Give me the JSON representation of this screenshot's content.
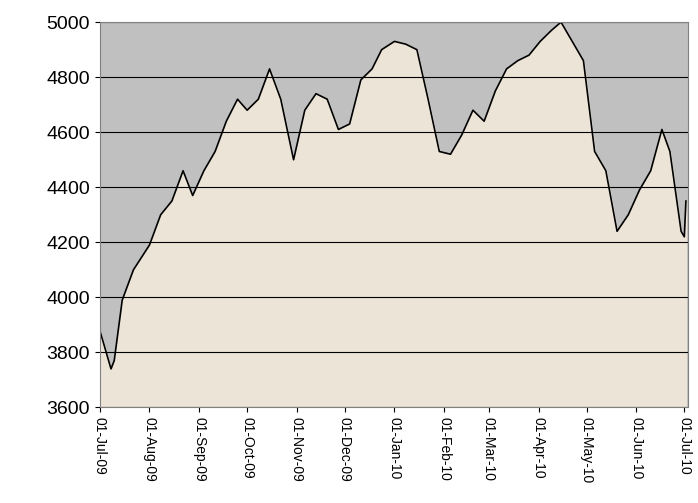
{
  "chart_data": {
    "type": "line",
    "color": "#000000",
    "grid": true,
    "x": [
      "2009-07-01",
      "2009-07-08",
      "2009-07-10",
      "2009-07-15",
      "2009-07-22",
      "2009-08-01",
      "2009-08-08",
      "2009-08-15",
      "2009-08-22",
      "2009-08-28",
      "2009-09-04",
      "2009-09-11",
      "2009-09-18",
      "2009-09-25",
      "2009-10-01",
      "2009-10-08",
      "2009-10-15",
      "2009-10-22",
      "2009-10-30",
      "2009-11-06",
      "2009-11-13",
      "2009-11-20",
      "2009-11-27",
      "2009-12-04",
      "2009-12-11",
      "2009-12-18",
      "2009-12-24",
      "2010-01-01",
      "2010-01-08",
      "2010-01-15",
      "2010-01-22",
      "2010-01-29",
      "2010-02-05",
      "2010-02-12",
      "2010-02-19",
      "2010-02-26",
      "2010-03-05",
      "2010-03-12",
      "2010-03-19",
      "2010-03-26",
      "2010-04-02",
      "2010-04-09",
      "2010-04-15",
      "2010-04-22",
      "2010-04-29",
      "2010-05-06",
      "2010-05-13",
      "2010-05-20",
      "2010-05-27",
      "2010-06-03",
      "2010-06-10",
      "2010-06-17",
      "2010-06-22",
      "2010-06-29",
      "2010-07-01",
      "2010-07-02"
    ],
    "values": [
      3880,
      3740,
      3770,
      3990,
      4100,
      4190,
      4300,
      4350,
      4460,
      4370,
      4460,
      4530,
      4640,
      4720,
      4680,
      4720,
      4830,
      4720,
      4500,
      4680,
      4740,
      4720,
      4610,
      4630,
      4790,
      4830,
      4900,
      4930,
      4920,
      4900,
      4720,
      4530,
      4520,
      4590,
      4680,
      4640,
      4750,
      4830,
      4860,
      4880,
      4930,
      4970,
      5000,
      4930,
      4860,
      4530,
      4460,
      4240,
      4300,
      4390,
      4460,
      4610,
      4530,
      4240,
      4220,
      4350
    ],
    "xlim": [
      "2009-07-01",
      "2010-07-03"
    ],
    "xticks": [
      {
        "value": "2009-07-01",
        "label": "01-Jul-09"
      },
      {
        "value": "2009-08-01",
        "label": "01-Aug-09"
      },
      {
        "value": "2009-09-01",
        "label": "01-Sep-09"
      },
      {
        "value": "2009-10-01",
        "label": "01-Oct-09"
      },
      {
        "value": "2009-11-01",
        "label": "01-Nov-09"
      },
      {
        "value": "2009-12-01",
        "label": "01-Dec-09"
      },
      {
        "value": "2010-01-01",
        "label": "01-Jan-10"
      },
      {
        "value": "2010-02-01",
        "label": "01-Feb-10"
      },
      {
        "value": "2010-03-01",
        "label": "01-Mar-10"
      },
      {
        "value": "2010-04-01",
        "label": "01-Apr-10"
      },
      {
        "value": "2010-05-01",
        "label": "01-May-10"
      },
      {
        "value": "2010-06-01",
        "label": "01-Jun-10"
      },
      {
        "value": "2010-07-01",
        "label": "01-Jul-10"
      }
    ],
    "ylim": [
      3600,
      5000
    ],
    "yticks": [
      3600,
      3800,
      4000,
      4200,
      4400,
      4600,
      4800,
      5000
    ]
  }
}
